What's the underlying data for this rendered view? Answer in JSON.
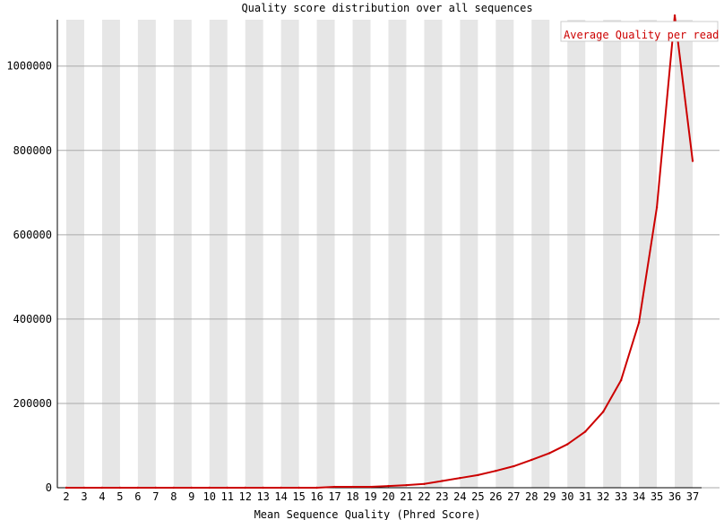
{
  "chart_data": {
    "type": "line",
    "title": "Quality score distribution over all sequences",
    "xlabel": "Mean Sequence Quality (Phred Score)",
    "ylabel": "",
    "legend": "Average Quality per read",
    "legend_position": "top-right",
    "grid": true,
    "alternating_column_bands": true,
    "colors": {
      "series": "#cc0000",
      "band": "#e6e6e6",
      "grid": "#aaaaaa",
      "axis": "#000000"
    },
    "x": [
      "2",
      "3",
      "4",
      "5",
      "6",
      "7",
      "8",
      "9",
      "10",
      "11",
      "12",
      "13",
      "14",
      "15",
      "16",
      "17",
      "18",
      "19",
      "20",
      "21",
      "22",
      "23",
      "24",
      "25",
      "26",
      "27",
      "28",
      "29",
      "30",
      "31",
      "32",
      "33",
      "34",
      "35",
      "36",
      "37"
    ],
    "y_ticks": [
      "0",
      "200000",
      "400000",
      "600000",
      "800000",
      "1000000"
    ],
    "ylim": [
      0,
      1110000
    ],
    "series": [
      {
        "name": "Average Quality per read",
        "values": [
          0,
          0,
          0,
          0,
          0,
          0,
          0,
          0,
          0,
          0,
          0,
          0,
          0,
          0,
          0,
          2000,
          2000,
          2000,
          4000,
          6000,
          9000,
          16000,
          23000,
          30000,
          40000,
          51000,
          66000,
          82000,
          103000,
          133000,
          180000,
          255000,
          392000,
          665000,
          1120000,
          775000
        ]
      }
    ]
  }
}
